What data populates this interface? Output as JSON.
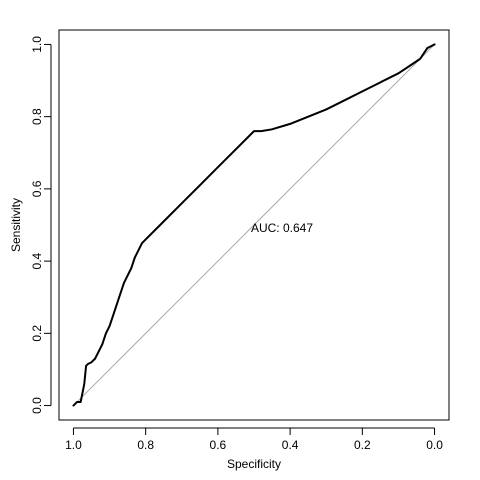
{
  "chart_data": {
    "type": "line",
    "title": "",
    "xlabel": "Specificity",
    "ylabel": "Sensitivity",
    "x_reversed": true,
    "xlim": [
      1.04,
      -0.04
    ],
    "ylim": [
      -0.04,
      1.04
    ],
    "xticks": [
      1.0,
      0.8,
      0.6,
      0.4,
      0.2,
      0.0
    ],
    "xtick_labels": [
      "1.0",
      "0.8",
      "0.6",
      "0.4",
      "0.2",
      "0.0"
    ],
    "yticks": [
      0.0,
      0.2,
      0.4,
      0.6,
      0.8,
      1.0
    ],
    "ytick_labels": [
      "0.0",
      "0.2",
      "0.4",
      "0.6",
      "0.8",
      "1.0"
    ],
    "annotation": {
      "text": "AUC: 0.647",
      "x": 0.5,
      "y": 0.48
    },
    "reference_line": {
      "from": [
        1.0,
        0.0
      ],
      "to": [
        0.0,
        1.0
      ],
      "color": "#aaaaaa"
    },
    "series": [
      {
        "color": "#000000",
        "x": [
          1.0,
          0.99,
          0.98,
          0.97,
          0.965,
          0.96,
          0.95,
          0.94,
          0.93,
          0.92,
          0.91,
          0.9,
          0.89,
          0.88,
          0.87,
          0.86,
          0.85,
          0.84,
          0.83,
          0.82,
          0.81,
          0.8,
          0.75,
          0.7,
          0.65,
          0.6,
          0.55,
          0.5,
          0.48,
          0.45,
          0.4,
          0.35,
          0.3,
          0.25,
          0.2,
          0.15,
          0.1,
          0.07,
          0.04,
          0.03,
          0.02,
          0.01,
          0.0
        ],
        "y": [
          0.0,
          0.01,
          0.01,
          0.06,
          0.11,
          0.115,
          0.12,
          0.13,
          0.15,
          0.17,
          0.2,
          0.22,
          0.25,
          0.28,
          0.31,
          0.34,
          0.36,
          0.38,
          0.41,
          0.43,
          0.45,
          0.46,
          0.51,
          0.56,
          0.61,
          0.66,
          0.71,
          0.76,
          0.76,
          0.765,
          0.78,
          0.8,
          0.82,
          0.845,
          0.87,
          0.895,
          0.92,
          0.94,
          0.96,
          0.975,
          0.99,
          0.995,
          1.0
        ]
      }
    ],
    "grid": false,
    "legend": null
  }
}
